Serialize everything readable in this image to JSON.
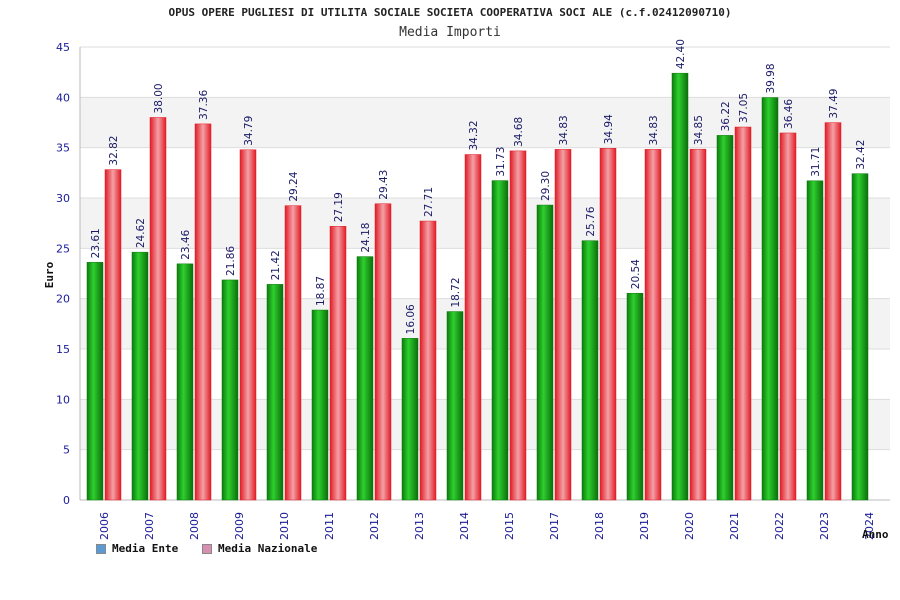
{
  "title": "OPUS OPERE PUGLIESI DI UTILITA SOCIALE SOCIETA COOPERATIVA SOCI ALE (c.f.02412090710)",
  "subtitle": "Media Importi",
  "chart_data": {
    "type": "bar",
    "title": "OPUS OPERE PUGLIESI DI UTILITA SOCIALE SOCIETA COOPERATIVA SOCI ALE (c.f.02412090710)",
    "subtitle": "Media Importi",
    "xlabel": "Anno",
    "ylabel": "Euro",
    "ylim": [
      0,
      45
    ],
    "yticks": [
      0,
      5,
      10,
      15,
      20,
      25,
      30,
      35,
      40,
      45
    ],
    "grid": true,
    "legend_position": "bottom-left",
    "categories": [
      "2006",
      "2007",
      "2008",
      "2009",
      "2010",
      "2011",
      "2012",
      "2013",
      "2014",
      "2015",
      "2017",
      "2018",
      "2019",
      "2020",
      "2021",
      "2022",
      "2023",
      "2024"
    ],
    "series": [
      {
        "name": "Media Ente",
        "color": "#1fa81f",
        "legend_color": "#5b9bd5",
        "values": [
          23.61,
          24.62,
          23.46,
          21.86,
          21.42,
          18.87,
          24.18,
          16.06,
          18.72,
          31.73,
          29.3,
          25.76,
          20.54,
          42.4,
          36.22,
          39.98,
          31.71,
          32.42
        ],
        "labels": [
          "23.61",
          "24.62",
          "23.46",
          "21.86",
          "21.42",
          "18.87",
          "24.18",
          "16.06",
          "18.72",
          "31.73",
          "29.30",
          "25.76",
          "20.54",
          "42.40",
          "36.22",
          "39.98",
          "31.71",
          "32.42"
        ]
      },
      {
        "name": "Media Nazionale",
        "color": "#e8343c",
        "legend_color": "#d98fb0",
        "values": [
          32.82,
          38.0,
          37.36,
          34.79,
          29.24,
          27.19,
          29.43,
          27.71,
          34.32,
          34.68,
          34.83,
          34.94,
          34.83,
          34.85,
          37.05,
          36.46,
          37.49,
          null
        ],
        "labels": [
          "32.82",
          "38.00",
          "37.36",
          "34.79",
          "29.24",
          "27.19",
          "29.43",
          "27.71",
          "34.32",
          "34.68",
          "34.83",
          "34.94",
          "34.83",
          "34.85",
          "37.05",
          "36.46",
          "37.49",
          null
        ]
      }
    ]
  }
}
